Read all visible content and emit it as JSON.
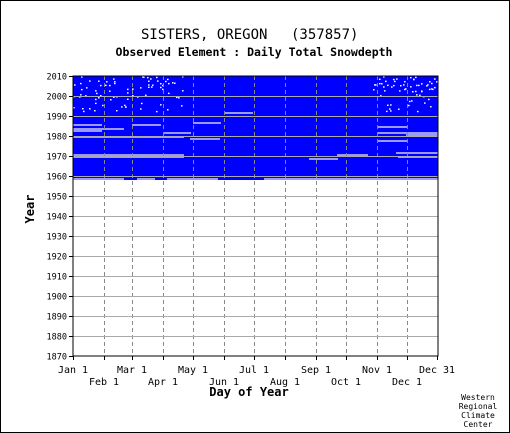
{
  "chart_data": {
    "type": "heatmap",
    "title": "SISTERS, OREGON",
    "station_id": "(357857)",
    "subtitle": "Observed Element : Daily Total Snowdepth",
    "xlabel": "Day of Year",
    "ylabel": "Year",
    "ylim": [
      1870,
      2010
    ],
    "y_ticks": [
      1870,
      1880,
      1890,
      1900,
      1910,
      1920,
      1930,
      1940,
      1950,
      1960,
      1970,
      1980,
      1990,
      2000,
      2010
    ],
    "x_ticks_upper": [
      {
        "label": "Jan 1",
        "day": 1
      },
      {
        "label": "Mar 1",
        "day": 60
      },
      {
        "label": "May 1",
        "day": 121
      },
      {
        "label": "Jul 1",
        "day": 182
      },
      {
        "label": "Sep 1",
        "day": 244
      },
      {
        "label": "Nov 1",
        "day": 305
      },
      {
        "label": "Dec 31",
        "day": 365
      }
    ],
    "x_ticks_lower": [
      {
        "label": "Feb 1",
        "day": 32
      },
      {
        "label": "Apr 1",
        "day": 91
      },
      {
        "label": "Jun 1",
        "day": 152
      },
      {
        "label": "Aug 1",
        "day": 213
      },
      {
        "label": "Oct 1",
        "day": 274
      },
      {
        "label": "Dec 1",
        "day": 335
      }
    ],
    "grid": true,
    "legend": "none",
    "observed_color": "#0000ff",
    "missing_color": "#ffffff",
    "record_start_year": 1958,
    "record_end_year": 2009,
    "missing_segments": [
      {
        "year": 1958,
        "start": 1,
        "end": 51
      },
      {
        "year": 1958,
        "start": 95,
        "end": 145
      },
      {
        "year": 1958,
        "start": 192,
        "end": 365
      },
      {
        "year": 1958,
        "start": 65,
        "end": 82
      },
      {
        "year": 1969,
        "start": 1,
        "end": 111
      },
      {
        "year": 1970,
        "start": 1,
        "end": 111
      },
      {
        "year": 1969,
        "start": 326,
        "end": 365
      },
      {
        "year": 1968,
        "start": 237,
        "end": 265
      },
      {
        "year": 1970,
        "start": 265,
        "end": 295
      },
      {
        "year": 1971,
        "start": 324,
        "end": 365
      },
      {
        "year": 1977,
        "start": 305,
        "end": 334
      },
      {
        "year": 1978,
        "start": 118,
        "end": 147
      },
      {
        "year": 1979,
        "start": 1,
        "end": 111
      },
      {
        "year": 1980,
        "start": 334,
        "end": 365
      },
      {
        "year": 1981,
        "start": 91,
        "end": 118
      },
      {
        "year": 1981,
        "start": 305,
        "end": 365
      },
      {
        "year": 1982,
        "start": 1,
        "end": 29
      },
      {
        "year": 1983,
        "start": 1,
        "end": 51
      },
      {
        "year": 1984,
        "start": 305,
        "end": 334
      },
      {
        "year": 1985,
        "start": 60,
        "end": 88
      },
      {
        "year": 1985,
        "start": 1,
        "end": 29
      },
      {
        "year": 1986,
        "start": 121,
        "end": 148
      },
      {
        "year": 1991,
        "start": 152,
        "end": 180
      }
    ],
    "scattered_gap_years": [
      1992,
      2009
    ]
  },
  "credit": {
    "line1": "Western",
    "line2": "Regional",
    "line3": "Climate",
    "line4": "Center"
  }
}
